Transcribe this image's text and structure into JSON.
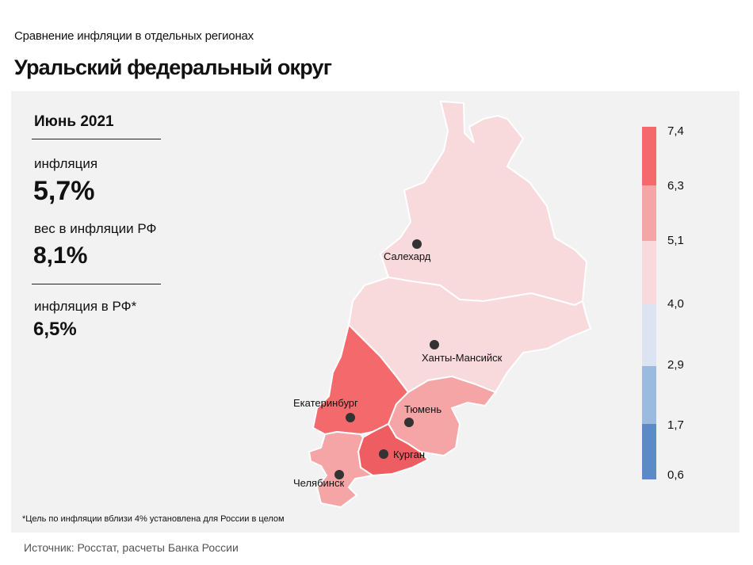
{
  "header": {
    "subtitle": "Сравнение инфляции в отдельных регионах",
    "title": "Уральский федеральный округ"
  },
  "stats": {
    "period": "Июнь 2021",
    "inflation_label": "инфляция",
    "inflation_value": "5,7%",
    "weight_label": "вес в инфляции РФ",
    "weight_value": "8,1%",
    "rf_inflation_label": "инфляция в РФ*",
    "rf_inflation_value": "6,5%"
  },
  "map": {
    "cities": [
      {
        "name": "Салехард"
      },
      {
        "name": "Ханты-Мансийск"
      },
      {
        "name": "Екатеринбург"
      },
      {
        "name": "Тюмень"
      },
      {
        "name": "Курган"
      },
      {
        "name": "Челябинск"
      }
    ]
  },
  "legend": {
    "thresholds": [
      "7,4",
      "6,3",
      "5,1",
      "4,0",
      "2,9",
      "1,7",
      "0,6"
    ],
    "colors": [
      "#f46a6c",
      "#f6a5a7",
      "#f8dadd",
      "#dce4f2",
      "#9bbadf",
      "#5b8ac7"
    ]
  },
  "colors": {
    "yanao": "#f8dadd",
    "khmao": "#f8dadd",
    "sverdlovsk": "#f46a6c",
    "tyumen": "#f6a5a7",
    "kurgan": "#ee5d62",
    "chelyabinsk": "#f6a5a7",
    "panel": "#f2f2f2"
  },
  "footer": {
    "note": "*Цель по инфляции вблизи 4% установлена для России в целом",
    "source": "Источник: Росстат, расчеты Банка России"
  }
}
